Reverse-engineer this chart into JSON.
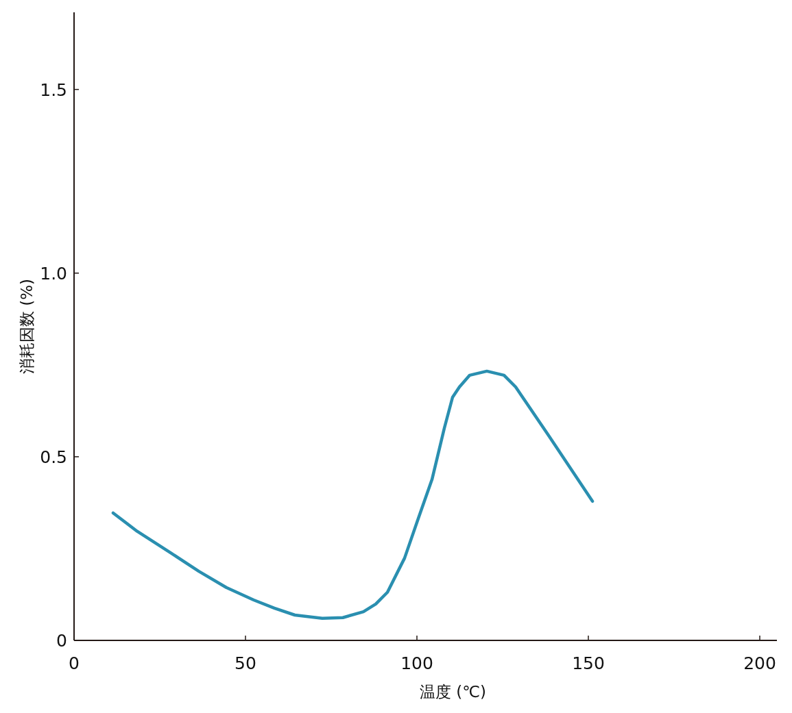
{
  "chart_data": {
    "type": "line",
    "xlabel": "温度 (℃)",
    "ylabel": "消耗因数 (%)",
    "x": [
      11.4,
      18.4,
      28.4,
      36.4,
      44.4,
      52.4,
      58.4,
      64.4,
      72.4,
      78.4,
      84.4,
      88,
      91.4,
      96.4,
      100.4,
      104.4,
      108,
      110.4,
      112.4,
      115.4,
      120.4,
      125.4,
      128.8,
      138.4,
      151.2
    ],
    "series": [
      {
        "color": "#2a8fb0",
        "values": [
          0.347,
          0.297,
          0.237,
          0.188,
          0.144,
          0.11,
          0.088,
          0.069,
          0.06,
          0.062,
          0.078,
          0.099,
          0.131,
          0.224,
          0.332,
          0.438,
          0.578,
          0.662,
          0.69,
          0.722,
          0.733,
          0.722,
          0.69,
          0.558,
          0.379
        ]
      }
    ],
    "xlim": [
      0,
      205
    ],
    "ylim": [
      0,
      1.71
    ],
    "xticks": [
      0,
      50,
      100,
      150,
      200
    ],
    "yticks": [
      0,
      {
        "value": 0.5,
        "label": "0.5"
      },
      {
        "value": 1,
        "label": "1.0"
      },
      {
        "value": 1.5,
        "label": "1.5"
      }
    ]
  }
}
